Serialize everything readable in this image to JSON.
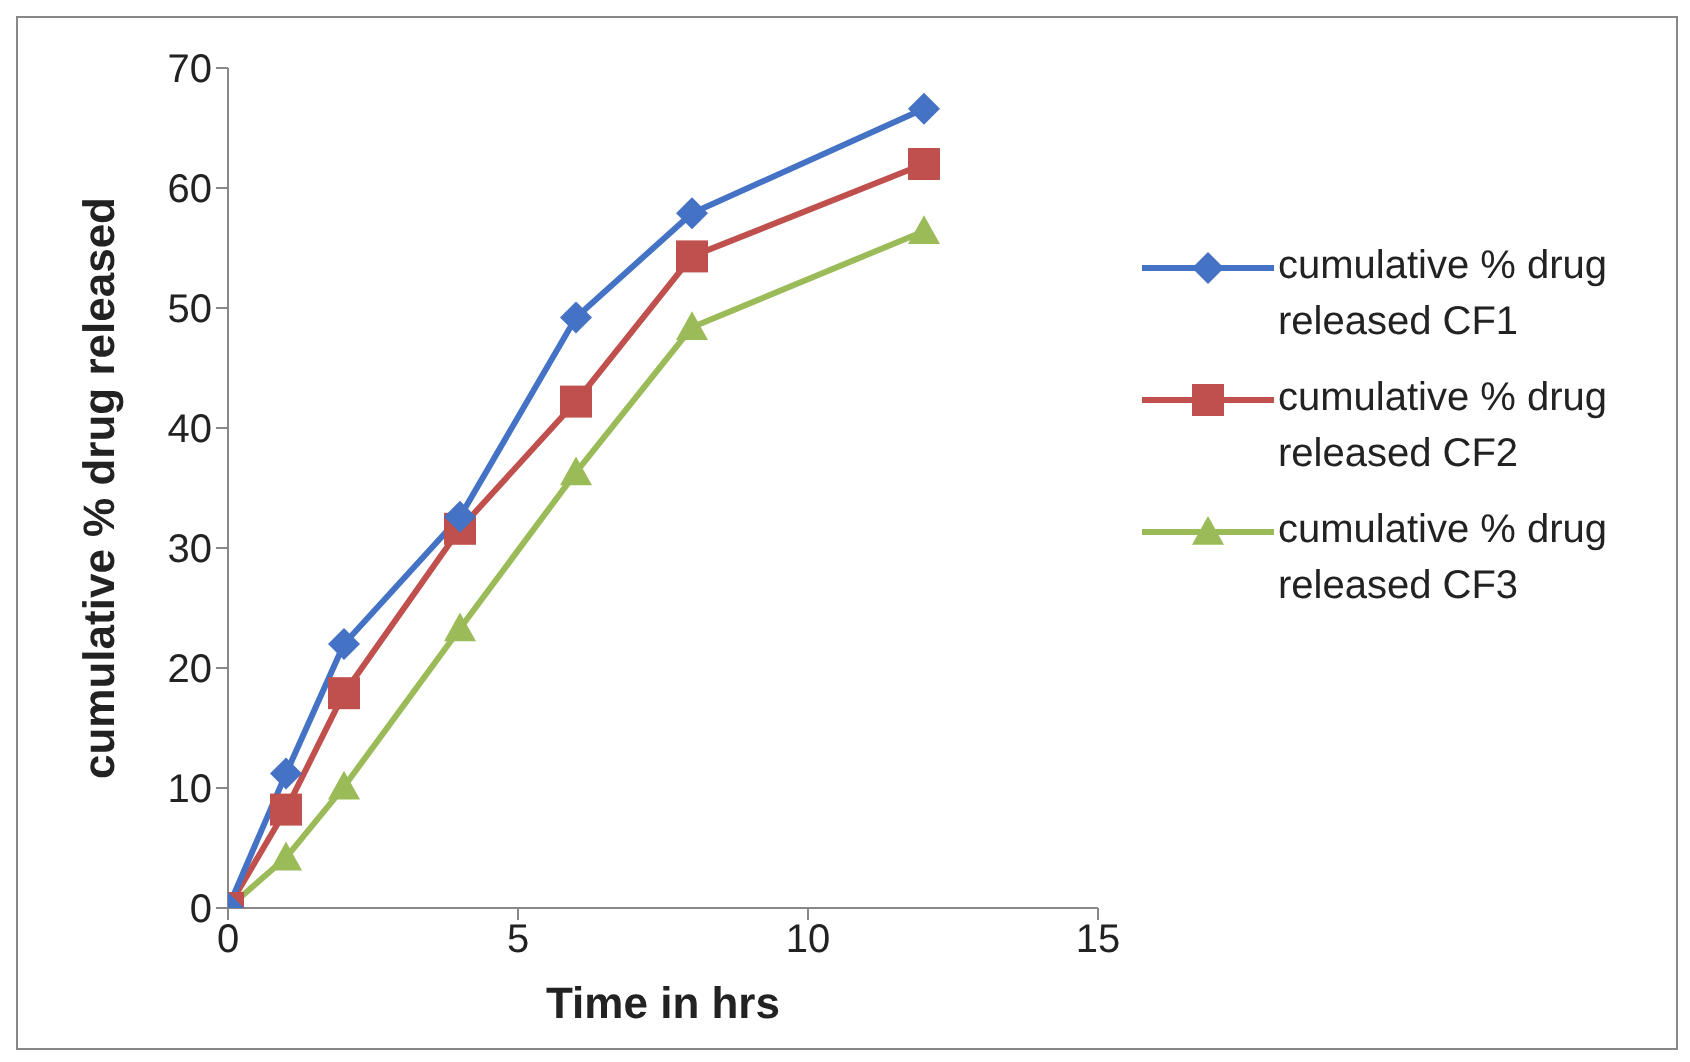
{
  "chart_data": {
    "type": "line",
    "xlabel": "Time in hrs",
    "ylabel": "cumulative % drug released",
    "x": [
      0,
      1,
      2,
      4,
      6,
      8,
      12
    ],
    "xlim": [
      0,
      15
    ],
    "xticks": [
      0,
      5,
      10,
      15
    ],
    "ylim": [
      0,
      70
    ],
    "yticks": [
      0,
      10,
      20,
      30,
      40,
      50,
      60,
      70
    ],
    "grid": false,
    "legend": "right",
    "line_style": "solid",
    "series": [
      {
        "name": "cumulative % drug released CF1",
        "color": "#4472c4",
        "marker": "diamond",
        "values": [
          0,
          11.2,
          22,
          32.6,
          49.2,
          57.9,
          66.6
        ]
      },
      {
        "name": "cumulative % drug released CF2",
        "color": "#c0504d",
        "marker": "square",
        "values": [
          0,
          8.2,
          17.9,
          31.6,
          42.2,
          54.3,
          62
        ]
      },
      {
        "name": "cumulative % drug released CF3",
        "color": "#9bbb59",
        "marker": "triangle",
        "values": [
          0,
          4.2,
          10.1,
          23.3,
          36.3,
          48.4,
          56.4
        ]
      }
    ]
  }
}
